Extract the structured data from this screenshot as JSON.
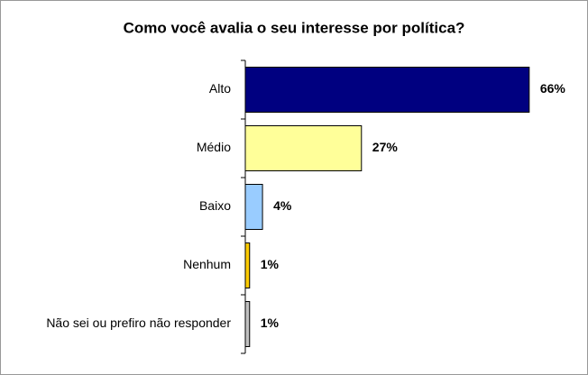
{
  "chart_data": {
    "type": "barh",
    "title": "Como você avalia o seu interesse por política?",
    "categories": [
      "Alto",
      "Médio",
      "Baixo",
      "Nenhum",
      "Não sei ou prefiro não responder"
    ],
    "values": [
      66,
      27,
      4,
      1,
      1
    ],
    "value_labels": [
      "66%",
      "27%",
      "4%",
      "1%",
      "1%"
    ],
    "colors": [
      "#000080",
      "#ffff99",
      "#99ccff",
      "#ffcc00",
      "#c0c0c0"
    ]
  }
}
